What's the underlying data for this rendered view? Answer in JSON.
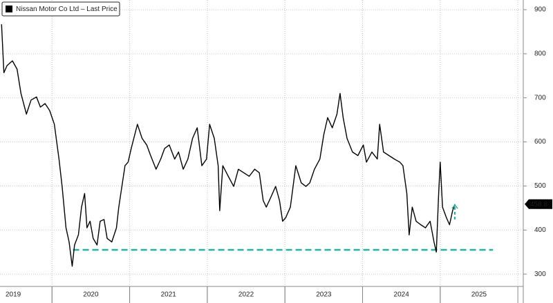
{
  "chart_data": {
    "type": "line",
    "series": [
      {
        "name": "Nissan Motor Co Ltd – Last Price",
        "color": "#000000",
        "x": [
          2019.35,
          2019.38,
          2019.42,
          2019.49,
          2019.55,
          2019.6,
          2019.67,
          2019.73,
          2019.8,
          2019.85,
          2019.91,
          2019.97,
          2020.03,
          2020.09,
          2020.13,
          2020.18,
          2020.22,
          2020.26,
          2020.29,
          2020.34,
          2020.38,
          2020.42,
          2020.45,
          2020.49,
          2020.53,
          2020.58,
          2020.62,
          2020.67,
          2020.71,
          2020.77,
          2020.83,
          2020.86,
          2020.9,
          2020.94,
          2020.98,
          2021.02,
          2021.1,
          2021.16,
          2021.22,
          2021.27,
          2021.34,
          2021.4,
          2021.45,
          2021.51,
          2021.58,
          2021.63,
          2021.69,
          2021.75,
          2021.81,
          2021.87,
          2021.93,
          2021.99,
          2022.03,
          2022.09,
          2022.14,
          2022.16,
          2022.2,
          2022.27,
          2022.34,
          2022.4,
          2022.47,
          2022.54,
          2022.61,
          2022.67,
          2022.72,
          2022.76,
          2022.82,
          2022.88,
          2022.93,
          2022.97,
          2023.01,
          2023.07,
          2023.14,
          2023.21,
          2023.27,
          2023.32,
          2023.38,
          2023.45,
          2023.5,
          2023.55,
          2023.61,
          2023.67,
          2023.71,
          2023.75,
          2023.8,
          2023.87,
          2023.94,
          2024.01,
          2024.05,
          2024.12,
          2024.19,
          2024.22,
          2024.27,
          2024.34,
          2024.41,
          2024.48,
          2024.52,
          2024.57,
          2024.6,
          2024.64,
          2024.69,
          2024.75,
          2024.81,
          2024.87,
          2024.92,
          2024.95,
          2024.98,
          2025.0,
          2025.03,
          2025.08,
          2025.12,
          2025.16,
          2025.19
        ],
        "values": [
          867,
          757,
          773,
          784,
          765,
          710,
          663,
          695,
          702,
          679,
          687,
          671,
          640,
          561,
          499,
          405,
          373,
          318,
          366,
          389,
          452,
          483,
          405,
          420,
          381,
          366,
          420,
          424,
          381,
          373,
          405,
          452,
          499,
          546,
          554,
          585,
          640,
          608,
          593,
          569,
          538,
          561,
          585,
          593,
          561,
          577,
          538,
          561,
          608,
          632,
          546,
          561,
          640,
          608,
          546,
          444,
          546,
          522,
          499,
          538,
          530,
          522,
          538,
          530,
          467,
          452,
          475,
          499,
          467,
          420,
          428,
          452,
          546,
          507,
          499,
          507,
          538,
          561,
          616,
          655,
          632,
          663,
          710,
          655,
          608,
          577,
          569,
          593,
          554,
          577,
          561,
          640,
          577,
          569,
          561,
          554,
          546,
          483,
          389,
          452,
          420,
          412,
          405,
          420,
          373,
          350,
          483,
          554,
          452,
          428,
          412,
          444,
          458.8
        ]
      }
    ],
    "xlim": [
      2019.33,
      2026.07
    ],
    "xticks": [
      {
        "value": 2019.5,
        "label": "2019"
      },
      {
        "value": 2020.5,
        "label": "2020"
      },
      {
        "value": 2021.5,
        "label": "2021"
      },
      {
        "value": 2022.5,
        "label": "2022"
      },
      {
        "value": 2023.5,
        "label": "2023"
      },
      {
        "value": 2024.5,
        "label": "2024"
      },
      {
        "value": 2025.5,
        "label": "2025"
      }
    ],
    "ylim": [
      272,
      922
    ],
    "yticks": [
      300,
      400,
      500,
      600,
      700,
      800,
      900
    ],
    "grid": true,
    "legend": "top-left",
    "reference_line": {
      "value": 355,
      "x": [
        2020.27,
        2025.68
      ],
      "color": "#1fb5a5"
    }
  }
}
